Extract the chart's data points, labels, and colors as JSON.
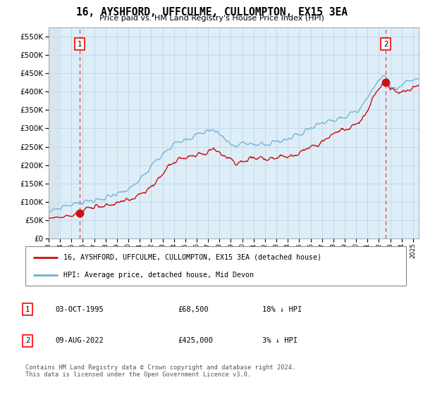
{
  "title": "16, AYSHFORD, UFFCULME, CULLOMPTON, EX15 3EA",
  "subtitle": "Price paid vs. HM Land Registry's House Price Index (HPI)",
  "ylim": [
    0,
    575000
  ],
  "yticks": [
    0,
    50000,
    100000,
    150000,
    200000,
    250000,
    300000,
    350000,
    400000,
    450000,
    500000,
    550000
  ],
  "sale1_year": 1995.75,
  "sale1_price": 68500,
  "sale2_year": 2022.6,
  "sale2_price": 425000,
  "legend_line1": "16, AYSHFORD, UFFCULME, CULLOMPTON, EX15 3EA (detached house)",
  "legend_line2": "HPI: Average price, detached house, Mid Devon",
  "table_row1": [
    "1",
    "03-OCT-1995",
    "£68,500",
    "18% ↓ HPI"
  ],
  "table_row2": [
    "2",
    "09-AUG-2022",
    "£425,000",
    "3% ↓ HPI"
  ],
  "footer": "Contains HM Land Registry data © Crown copyright and database right 2024.\nThis data is licensed under the Open Government Licence v3.0.",
  "hpi_color": "#6ab0d4",
  "price_color": "#cc1111",
  "grid_color": "#c0d4e8",
  "dashed_line_color": "#ee3333",
  "plot_bg": "#ddeef8",
  "hatch_bg": "#c8dcea"
}
